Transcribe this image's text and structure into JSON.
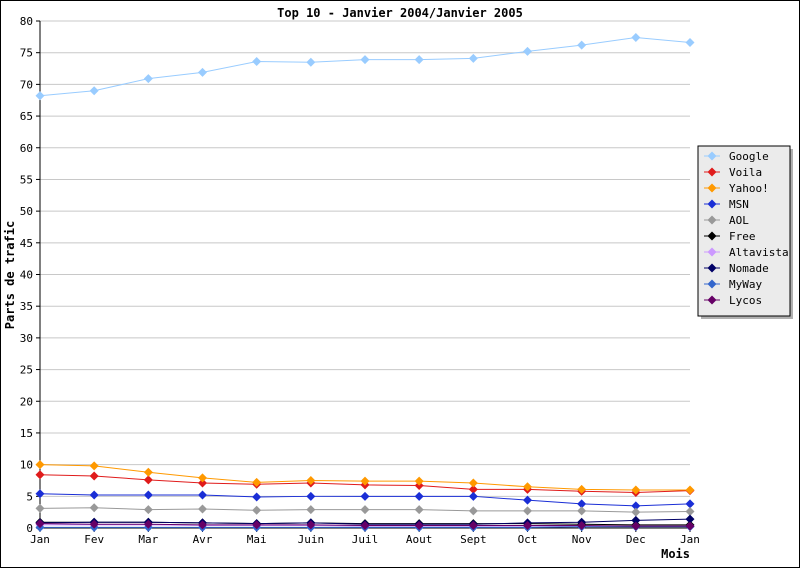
{
  "chart_data": {
    "type": "line",
    "title": "Top 10 - Janvier 2004/Janvier 2005",
    "xlabel": "Mois",
    "ylabel": "Parts de trafic",
    "ylim": [
      0,
      80
    ],
    "yticks": [
      0,
      5,
      10,
      15,
      20,
      25,
      30,
      35,
      40,
      45,
      50,
      55,
      60,
      65,
      70,
      75,
      80
    ],
    "grid": true,
    "legend_position": "right",
    "categories": [
      "Jan",
      "Fev",
      "Mar",
      "Avr",
      "Mai",
      "Juin",
      "Juil",
      "Aout",
      "Sept",
      "Oct",
      "Nov",
      "Dec",
      "Jan"
    ],
    "series": [
      {
        "name": "Google",
        "color": "#99ccff",
        "values": [
          68.2,
          69.0,
          70.9,
          71.9,
          73.6,
          73.5,
          73.9,
          73.9,
          74.1,
          75.2,
          76.2,
          77.4,
          76.6
        ]
      },
      {
        "name": "Voila",
        "color": "#e01b1b",
        "values": [
          8.4,
          8.2,
          7.6,
          7.1,
          6.9,
          7.1,
          6.8,
          6.7,
          6.1,
          6.1,
          5.8,
          5.6,
          5.9
        ]
      },
      {
        "name": "Yahoo!",
        "color": "#ff9900",
        "values": [
          10.0,
          9.8,
          8.8,
          7.9,
          7.2,
          7.5,
          7.4,
          7.4,
          7.1,
          6.5,
          6.1,
          6.0,
          6.0
        ]
      },
      {
        "name": "MSN",
        "color": "#1a2ed6",
        "values": [
          5.4,
          5.2,
          5.2,
          5.2,
          4.9,
          5.0,
          5.0,
          5.0,
          5.0,
          4.4,
          3.8,
          3.5,
          3.8
        ]
      },
      {
        "name": "AOL",
        "color": "#999999",
        "values": [
          3.1,
          3.2,
          2.9,
          3.0,
          2.8,
          2.9,
          2.9,
          2.9,
          2.7,
          2.7,
          2.7,
          2.5,
          2.6
        ]
      },
      {
        "name": "Free",
        "color": "#000000",
        "values": [
          0.9,
          0.9,
          0.9,
          0.8,
          0.7,
          0.8,
          0.7,
          0.7,
          0.7,
          0.7,
          0.6,
          0.5,
          0.5
        ]
      },
      {
        "name": "Altavista",
        "color": "#cc99ff",
        "values": [
          0.5,
          0.5,
          0.5,
          0.4,
          0.4,
          0.4,
          0.3,
          0.3,
          0.3,
          0.3,
          0.3,
          0.3,
          0.3
        ]
      },
      {
        "name": "Nomade",
        "color": "#000066",
        "values": [
          0.8,
          0.9,
          0.9,
          0.8,
          0.7,
          0.8,
          0.6,
          0.6,
          0.6,
          0.8,
          0.9,
          1.2,
          1.4
        ]
      },
      {
        "name": "MyWay",
        "color": "#3366cc",
        "values": [
          0.1,
          0.1,
          0.1,
          0.1,
          0.1,
          0.1,
          0.1,
          0.1,
          0.1,
          0.1,
          0.2,
          0.2,
          0.2
        ]
      },
      {
        "name": "Lycos",
        "color": "#660066",
        "values": [
          0.7,
          0.6,
          0.6,
          0.5,
          0.5,
          0.5,
          0.4,
          0.4,
          0.4,
          0.4,
          0.4,
          0.3,
          0.3
        ]
      }
    ]
  }
}
